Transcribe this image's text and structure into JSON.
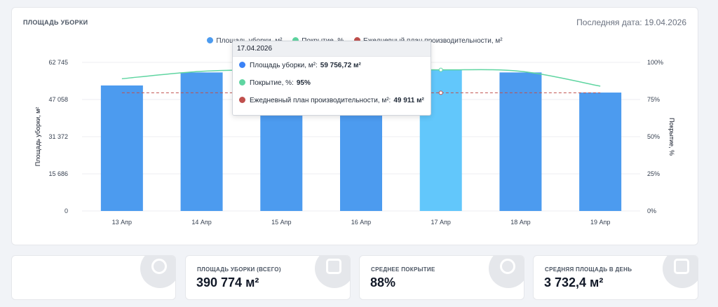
{
  "header": {
    "title": "ПЛОЩАДЬ УБОРКИ",
    "last_date": "Последняя дата: 19.04.2026"
  },
  "legend": [
    {
      "label": "Площадь уборки, м²",
      "color": "#4c9bef"
    },
    {
      "label": "Покрытие, %",
      "color": "#5fd5a1"
    },
    {
      "label": "Ежедневный план производительности, м²",
      "color": "#c0504d"
    }
  ],
  "tooltip": {
    "date": "17.04.2026",
    "rows": [
      {
        "label": "Площадь уборки, м²:",
        "value": "59 756,72 м²",
        "color": "#3b82f6"
      },
      {
        "label": "Покрытие, %:",
        "value": "95%",
        "color": "#5fd5a1"
      },
      {
        "label": "Ежедневный план производительности, м²:",
        "value": "49 911 м²",
        "color": "#c0504d"
      }
    ]
  },
  "chart_data": {
    "type": "bar",
    "categories": [
      "13 Апр",
      "14 Апр",
      "15 Апр",
      "16 Апр",
      "17 Апр",
      "18 Апр",
      "19 Апр"
    ],
    "series": [
      {
        "name": "Площадь уборки, м²",
        "type": "bar",
        "axis": "left",
        "values": [
          53000,
          58500,
          56500,
          56800,
          59756.72,
          58500,
          50000
        ],
        "color": "#4c9bef",
        "highlight_index": 4,
        "highlight_color": "#62c7fb"
      },
      {
        "name": "Покрытие, %",
        "type": "line",
        "axis": "right",
        "values": [
          89,
          94,
          95,
          95,
          95,
          94,
          84
        ],
        "color": "#5fd5a1"
      },
      {
        "name": "Ежедневный план производительности, м²",
        "type": "line",
        "axis": "left",
        "values": [
          49911,
          49911,
          49911,
          49911,
          49911,
          49911,
          49911
        ],
        "color": "#c0504d",
        "dashed": true
      }
    ],
    "ylabel": "Площадь уборки, м²",
    "y2label": "Покрытие, %",
    "ylim": [
      0,
      62745
    ],
    "y_ticks": [
      "0",
      "15 686",
      "31 372",
      "47 058",
      "62 745"
    ],
    "y2lim": [
      0,
      100
    ],
    "y2_ticks": [
      "0%",
      "25%",
      "50%",
      "75%",
      "100%"
    ],
    "grid": true,
    "legend_position": "top"
  },
  "kpis": [
    {
      "label": "",
      "value": "",
      "icon": "broom-icon"
    },
    {
      "label": "ПЛОЩАДЬ УБОРКИ (ВСЕГО)",
      "value": "390 774 м²",
      "icon": "grid-icon"
    },
    {
      "label": "СРЕДНЕЕ ПОКРЫТИЕ",
      "value": "88%",
      "icon": "check-circle-icon"
    },
    {
      "label": "СРЕДНЯЯ ПЛОЩАДЬ В ДЕНЬ",
      "value": "3 732,4 м²",
      "icon": "calendar-icon"
    }
  ]
}
